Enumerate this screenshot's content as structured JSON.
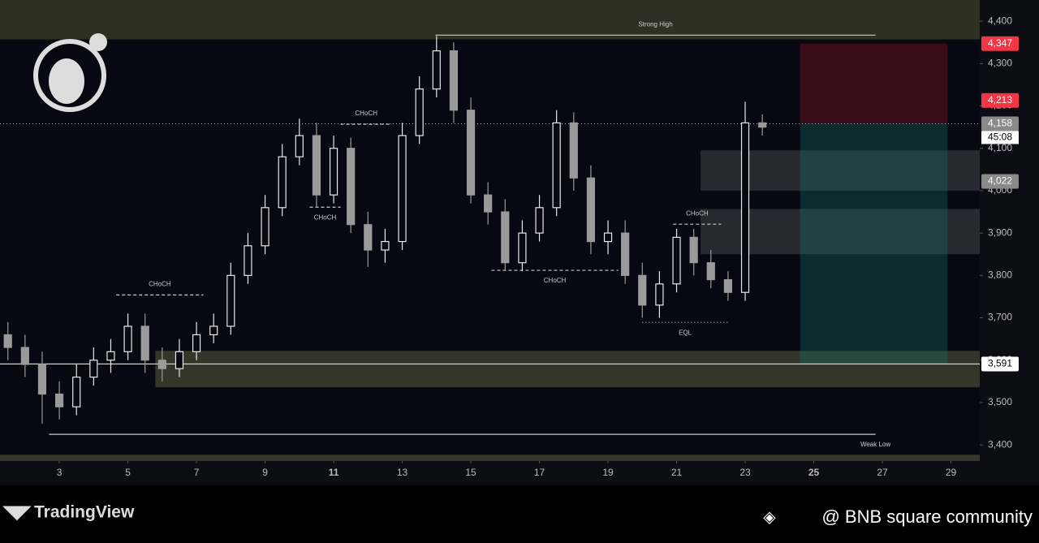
{
  "chart_data": {
    "type": "candlestick",
    "x": [
      1.5,
      2,
      2.5,
      3,
      3.5,
      4,
      4.5,
      5,
      5.5,
      6,
      6.5,
      7,
      7.5,
      8,
      8.5,
      9,
      9.5,
      10,
      10.5,
      11,
      11.5,
      12,
      12.5,
      13,
      13.5,
      14,
      14.5,
      15,
      15.5,
      16,
      16.5,
      17,
      17.5,
      18,
      18.5,
      19,
      19.5,
      20,
      20.5,
      21,
      21.5,
      22,
      22.5,
      23,
      23.5
    ],
    "open": [
      3660,
      3630,
      3590,
      3520,
      3490,
      3560,
      3600,
      3620,
      3680,
      3600,
      3580,
      3620,
      3660,
      3680,
      3800,
      3870,
      3960,
      4080,
      4130,
      3990,
      4100,
      3920,
      3860,
      3880,
      4130,
      4240,
      4330,
      4190,
      3990,
      3950,
      3830,
      3900,
      3960,
      4160,
      4030,
      3880,
      3900,
      3800,
      3730,
      3780,
      3890,
      3830,
      3790,
      3760,
      4160
    ],
    "high": [
      3690,
      3660,
      3620,
      3550,
      3590,
      3630,
      3650,
      3710,
      3710,
      3630,
      3650,
      3690,
      3710,
      3830,
      3900,
      3990,
      4110,
      4170,
      4160,
      4130,
      4125,
      3950,
      3910,
      4160,
      4270,
      4365,
      4350,
      4220,
      4020,
      3980,
      3930,
      3990,
      4190,
      4185,
      4060,
      3930,
      3930,
      3830,
      3810,
      3910,
      3910,
      3860,
      3810,
      4210,
      4180
    ],
    "low": [
      3600,
      3560,
      3450,
      3460,
      3470,
      3540,
      3570,
      3600,
      3570,
      3550,
      3560,
      3600,
      3640,
      3660,
      3780,
      3850,
      3940,
      4060,
      3960,
      3970,
      3900,
      3820,
      3830,
      3860,
      4110,
      4220,
      4160,
      3970,
      3920,
      3810,
      3810,
      3880,
      3940,
      4000,
      3850,
      3850,
      3780,
      3700,
      3700,
      3760,
      3800,
      3770,
      3740,
      3740,
      4130
    ],
    "close": [
      3630,
      3590,
      3520,
      3490,
      3560,
      3600,
      3620,
      3680,
      3600,
      3580,
      3620,
      3660,
      3680,
      3800,
      3870,
      3960,
      4080,
      4130,
      3990,
      4100,
      3920,
      3860,
      3880,
      4130,
      4240,
      4330,
      4190,
      3990,
      3950,
      3830,
      3900,
      3960,
      4160,
      4030,
      3880,
      3900,
      3800,
      3730,
      3780,
      3890,
      3830,
      3790,
      3760,
      4160,
      4150
    ],
    "up_color": "#e8e8e8",
    "down_color": "#9a9a9a",
    "xlim": [
      1.27,
      29.84
    ],
    "ylim": [
      3362,
      4450
    ],
    "xticks": [
      3,
      5,
      7,
      9,
      11,
      13,
      15,
      17,
      19,
      21,
      23,
      25,
      27,
      29
    ],
    "bold_xticks": [
      11,
      25
    ],
    "yticks": [
      {
        "value": 3400,
        "label": "3,400"
      },
      {
        "value": 3500,
        "label": "3,500"
      },
      {
        "value": 3600,
        "label": "3,600"
      },
      {
        "value": 3700,
        "label": "3,700"
      },
      {
        "value": 3800,
        "label": "3,800"
      },
      {
        "value": 3900,
        "label": "3,900"
      },
      {
        "value": 4000,
        "label": "4,000"
      },
      {
        "value": 4100,
        "label": "4,100"
      },
      {
        "value": 4200,
        "label": "4,200"
      },
      {
        "value": 4300,
        "label": "4,300"
      },
      {
        "value": 4400,
        "label": "4,400"
      }
    ],
    "zones": [
      {
        "y": [
          4357,
          4450
        ],
        "color": "#2e3023"
      },
      {
        "x": [
          5.8,
          29.84
        ],
        "y": [
          3536,
          3622
        ],
        "color": "#34362a"
      },
      {
        "y": [
          3362,
          3377
        ],
        "color": "#34362a"
      },
      {
        "x": [
          21.7,
          29.84
        ],
        "y": [
          4000,
          4095
        ],
        "color": "rgba(120,120,120,0.3)"
      },
      {
        "x": [
          21.7,
          29.84
        ],
        "y": [
          3850,
          3957
        ],
        "color": "rgba(120,120,120,0.3)"
      },
      {
        "x": [
          24.6,
          28.9
        ],
        "y": [
          4158,
          4347
        ],
        "color": "rgba(120,20,30,0.45)"
      },
      {
        "x": [
          24.6,
          28.9
        ],
        "y": [
          3591,
          4158
        ],
        "color": "rgba(20,110,100,0.35)"
      }
    ],
    "levels": [
      {
        "label": "Strong High",
        "x": [
          13.97,
          26.8
        ],
        "y": 4367,
        "style": "solid",
        "label_pos": "above"
      },
      {
        "label": "Weak Low",
        "x": [
          2.7,
          26.8
        ],
        "y": 3425,
        "style": "solid",
        "label_pos": "below"
      },
      {
        "label": "CHoCH",
        "x": [
          4.66,
          7.2
        ],
        "y": 3754,
        "style": "dash",
        "label_pos": "above"
      },
      {
        "label": "CHoCH",
        "x": [
          11.2,
          12.7
        ],
        "y": 4157,
        "style": "dash",
        "label_pos": "above"
      },
      {
        "label": "CHoCH",
        "x": [
          10.3,
          11.2
        ],
        "y": 3961,
        "style": "dash",
        "label_pos": "below"
      },
      {
        "label": "CHoCH",
        "x": [
          15.6,
          19.3
        ],
        "y": 3812,
        "style": "dash",
        "label_pos": "below"
      },
      {
        "label": "CHoCH",
        "x": [
          20.9,
          22.3
        ],
        "y": 3921,
        "style": "dash",
        "label_pos": "above"
      },
      {
        "label": "EQL",
        "x": [
          20,
          22.5
        ],
        "y": 3689,
        "style": "dot",
        "label_pos": "below"
      }
    ],
    "hlines": [
      {
        "value": 3591,
        "style": "solid"
      },
      {
        "value": 4158,
        "style": "dot"
      }
    ],
    "price_labels": [
      {
        "value": 4347,
        "label": "4,347",
        "color": "#f23645"
      },
      {
        "value": 4213,
        "label": "4,213",
        "color": "#f23645"
      },
      {
        "value": 4158,
        "label": "4,158",
        "color": "#8a8a8a"
      },
      {
        "value": 4022,
        "label": "4,022",
        "color": "#8a8a8a"
      },
      {
        "value": 3591,
        "label": "3,591",
        "color": "#ffffff"
      }
    ],
    "countdown": "45:08"
  },
  "footer": {
    "brand": "TradingView",
    "credit": "@ BNB square community"
  }
}
